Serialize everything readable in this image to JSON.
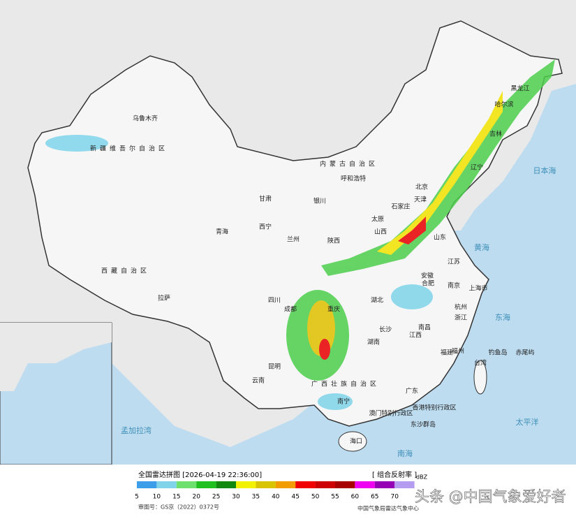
{
  "header": {
    "title": "全国雷达拼图 [2026-04-19 22:36:00]",
    "product": "[ 组合反射率 ]",
    "unit": "dBZ"
  },
  "legend": {
    "values": [
      5,
      10,
      15,
      20,
      25,
      30,
      35,
      40,
      45,
      50,
      55,
      60,
      65,
      70
    ],
    "colors": [
      "#3c9ee8",
      "#7fd4ea",
      "#6ee06e",
      "#1fc01f",
      "#128a12",
      "#f2f200",
      "#d9c400",
      "#f29c00",
      "#f00000",
      "#cc0000",
      "#a80000",
      "#f000f0",
      "#9600b4",
      "#b49cf0"
    ]
  },
  "footer": {
    "approval": "审图号：GS京（2022）0372号",
    "source": "中国气象局雷达气象中心"
  },
  "watermark": "头条 @中国气象爱好者",
  "labels": [
    "乌鲁木齐",
    "新疆维吾尔自治区",
    "西藏自治区",
    "拉萨",
    "青海",
    "西宁",
    "兰州",
    "甘肃",
    "内蒙古自治区",
    "呼和浩特",
    "银川",
    "北京",
    "天津",
    "石家庄",
    "太原",
    "山西",
    "陕西",
    "四川",
    "成都",
    "重庆",
    "云南",
    "昆明",
    "广西壮族自治区",
    "南宁",
    "湖南",
    "长沙",
    "湖北",
    "江西",
    "南昌",
    "福建",
    "福州",
    "浙江",
    "杭州",
    "上海市",
    "江苏",
    "南京",
    "安徽",
    "合肥",
    "山东",
    "黑龙江",
    "哈尔滨",
    "吉林",
    "辽宁",
    "广东",
    "香港特别行政区",
    "澳门特别行政区",
    "海口",
    "台湾",
    "黄海",
    "东海",
    "日本海",
    "太平洋",
    "南海",
    "孟加拉湾",
    "钓鱼岛",
    "赤尾屿",
    "东沙群岛"
  ]
}
